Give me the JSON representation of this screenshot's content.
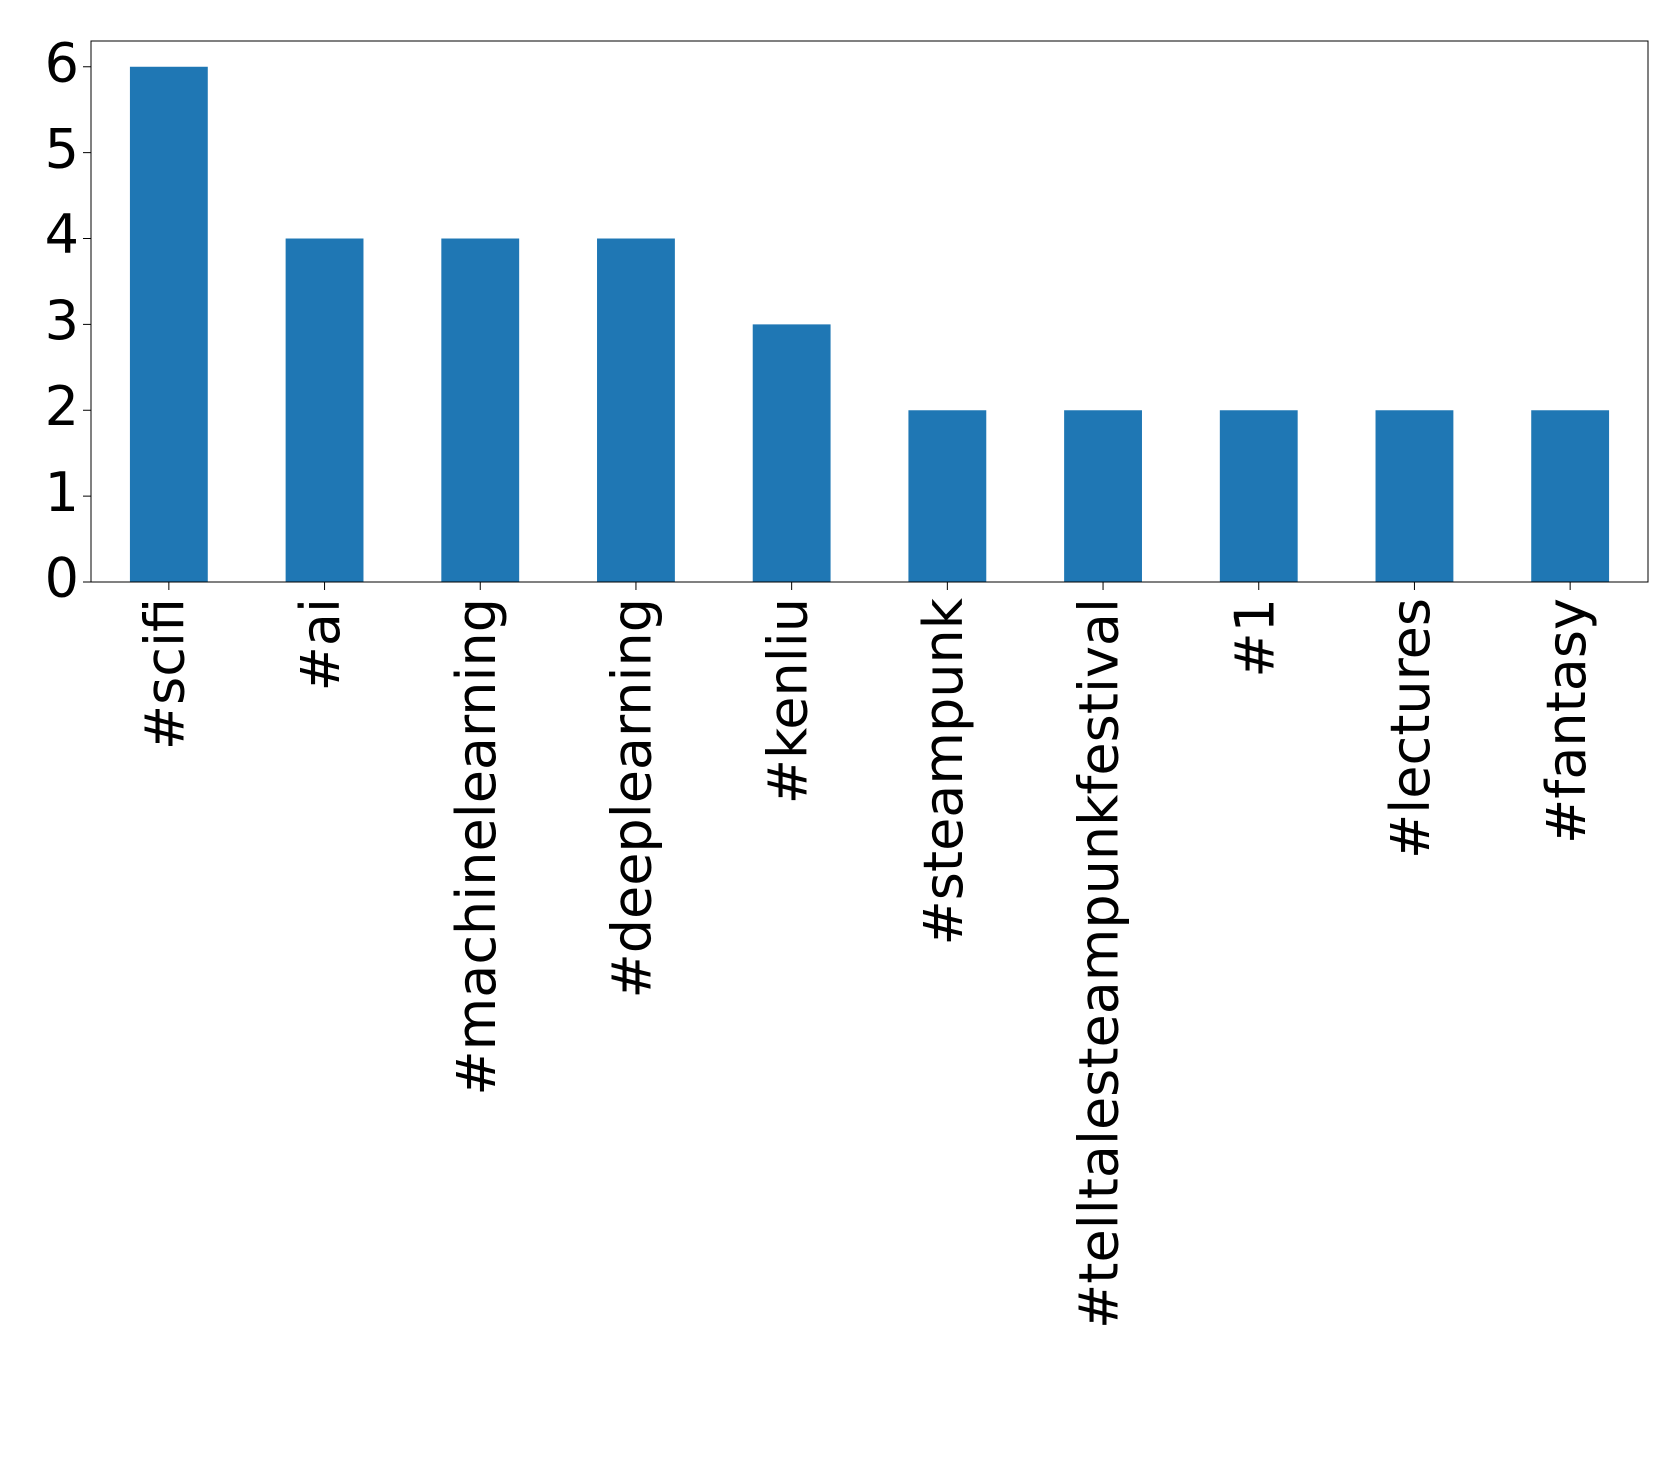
{
  "chart_data": {
    "type": "bar",
    "categories": [
      "#scifi",
      "#ai",
      "#machinelearning",
      "#deeplearning",
      "#kenliu",
      "#steampunk",
      "#telltalesteampunkfestival",
      "#1",
      "#lectures",
      "#fantasy"
    ],
    "values": [
      6,
      4,
      4,
      4,
      3,
      2,
      2,
      2,
      2,
      2
    ],
    "color": "#1f77b4",
    "ylim": [
      0,
      6.3
    ],
    "yticks": [
      0,
      1,
      2,
      3,
      4,
      5,
      6
    ],
    "grid": false
  }
}
